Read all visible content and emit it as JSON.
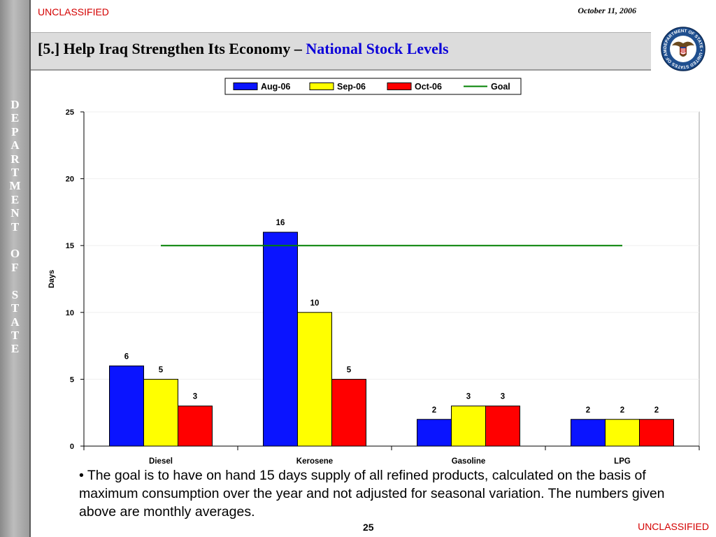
{
  "header": {
    "classification": "UNCLASSIFIED",
    "date": "October 11, 2006",
    "title_main": "[5.] Help Iraq Strengthen Its Economy – ",
    "title_accent": "National Stock Levels"
  },
  "sidebar": {
    "vertical_text": "D\nE\nP\nA\nR\nT\nM\nE\nN\nT\n\nO\nF\n\nS\nT\nA\nT\nE"
  },
  "footer": {
    "page_number": "25",
    "classification": "UNCLASSIFIED"
  },
  "note": {
    "bullet": "•",
    "text": " The goal is to have on hand 15 days supply of all refined products, calculated on the basis of maximum consumption over the year and not adjusted for seasonal variation.  The numbers given above are monthly averages."
  },
  "seal": {
    "text": "DEPARTMENT OF STATE • UNITED STATES OF AMERICA"
  },
  "colors": {
    "aug": "#0a14ff",
    "sep": "#ffff00",
    "oct": "#ff0000",
    "goal": "#008000",
    "classification": "#d40000",
    "title_accent": "#0b00d9"
  },
  "chart_data": {
    "type": "bar",
    "categories": [
      "Diesel",
      "Kerosene",
      "Gasoline",
      "LPG"
    ],
    "series": [
      {
        "name": "Aug-06",
        "values": [
          6,
          16,
          2,
          2
        ],
        "color": "#0a14ff"
      },
      {
        "name": "Sep-06",
        "values": [
          5,
          10,
          3,
          2
        ],
        "color": "#ffff00"
      },
      {
        "name": "Oct-06",
        "values": [
          3,
          5,
          3,
          2
        ],
        "color": "#ff0000"
      }
    ],
    "goal": {
      "name": "Goal",
      "value": 15,
      "color": "#008000"
    },
    "ylabel": "Days",
    "xlabel": "",
    "ylim": [
      0,
      25
    ],
    "yticks": [
      0,
      5,
      10,
      15,
      20,
      25
    ],
    "grid": true,
    "legend_position": "top"
  }
}
